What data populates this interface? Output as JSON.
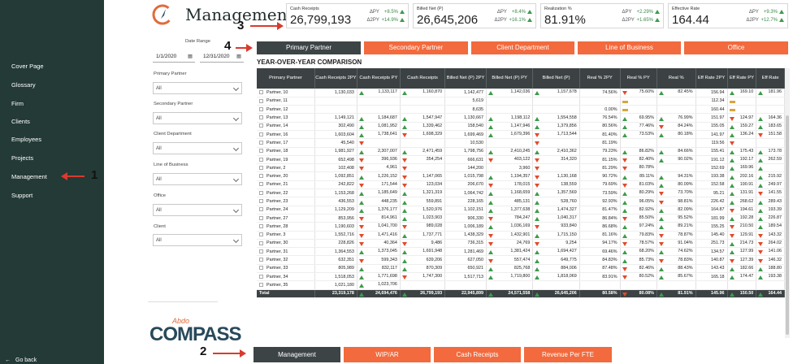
{
  "sidebar": {
    "items": [
      {
        "label": "Cover Page"
      },
      {
        "label": "Glossary"
      },
      {
        "label": "Firm"
      },
      {
        "label": "Clients"
      },
      {
        "label": "Employees"
      },
      {
        "label": "Projects"
      },
      {
        "label": "Management"
      },
      {
        "label": "Support"
      }
    ],
    "go_back": "Go back",
    "bg_color": "#233a36"
  },
  "header": {
    "title": "Management"
  },
  "kpis": [
    {
      "label": "Cash Receipts",
      "value": "26,799,193",
      "d1_label": "ΔPY",
      "d1": "+8.5%",
      "d2_label": "Δ2PY",
      "d2": "+14.9%"
    },
    {
      "label": "Billed Net (P)",
      "value": "26,645,206",
      "d1_label": "ΔPY",
      "d1": "+8.4%",
      "d2_label": "Δ2PY",
      "d2": "+16.1%"
    },
    {
      "label": "Realization %",
      "value": "81.91%",
      "d1_label": "ΔPY",
      "d1": "+2.29%",
      "d2_label": "Δ2PY",
      "d2": "+1.65%"
    },
    {
      "label": "Effective Rate",
      "value": "164.44",
      "d1_label": "ΔPY",
      "d1": "+9.3%",
      "d2_label": "Δ2PY",
      "d2": "+12.7%"
    }
  ],
  "filters": {
    "date_range_label": "Date Range",
    "date_from": "1/1/2020",
    "date_to": "12/31/2020",
    "selects": [
      {
        "label": "Primary Partner",
        "value": "All"
      },
      {
        "label": "Secondary Partner",
        "value": "All"
      },
      {
        "label": "Client Department",
        "value": "All"
      },
      {
        "label": "Line of Business",
        "value": "All"
      },
      {
        "label": "Office",
        "value": "All"
      },
      {
        "label": "Client",
        "value": "All"
      }
    ]
  },
  "tabs": [
    "Primary Partner",
    "Secondary Partner",
    "Client Department",
    "Line of Business",
    "Office"
  ],
  "bottom_tabs": [
    "Management",
    "WIP/AR",
    "Cash Receipts",
    "Revenue Per FTE"
  ],
  "annotations": [
    "1",
    "2",
    "3",
    "4"
  ],
  "table": {
    "title": "YEAR-OVER-YEAR COMPARISON",
    "columns": [
      "Primary Partner",
      "Cash Receipts 2PY",
      "Cash Receipts PY",
      "Cash Receipts",
      "Billed Net (P) 2PY",
      "Billed Net (P) PY",
      "Billed Net (P)",
      "Real % 2PY",
      "Real % PY",
      "Real %",
      "Eff Rate 2PY",
      "Eff Rate PY",
      "Eff Rate"
    ],
    "rows": [
      [
        "Partner, 10",
        "1,130,033",
        "1,133,117",
        "1,160,870",
        "1,142,477",
        "1,142,036",
        "1,157,678",
        "74.56%",
        "75.60%",
        "82.45%",
        "156.94",
        "169.10",
        "181.96"
      ],
      [
        "Partner, 11",
        "",
        "",
        "",
        "5,619",
        "",
        "",
        "",
        "",
        "",
        "112.34",
        "",
        ""
      ],
      [
        "Partner, 12",
        "",
        "",
        "",
        "8,635",
        "",
        "",
        "0.00%",
        "",
        "",
        "160.44",
        "",
        ""
      ],
      [
        "Partner, 13",
        "1,149,121",
        "1,184,687",
        "1,547,947",
        "1,130,667",
        "1,198,112",
        "1,554,558",
        "76.54%",
        "69.95%",
        "76.99%",
        "151.97",
        "124.97",
        "164.36"
      ],
      [
        "Partner, 14",
        "302,490",
        "1,081,952",
        "1,339,462",
        "158,540",
        "1,147,946",
        "1,379,856",
        "80.56%",
        "77.46%",
        "84.24%",
        "155.05",
        "159.27",
        "183.65"
      ],
      [
        "Partner, 16",
        "1,603,604",
        "1,738,641",
        "1,698,329",
        "1,699,469",
        "1,679,396",
        "1,713,544",
        "81.40%",
        "73.53%",
        "80.18%",
        "141.97",
        "136.24",
        "151.58"
      ],
      [
        "Partner, 17",
        "45,540",
        "",
        "",
        "10,530",
        "",
        "",
        "81.19%",
        "",
        "",
        "119.56",
        "",
        ""
      ],
      [
        "Partner, 18",
        "1,981,927",
        "2,307,007",
        "2,471,459",
        "1,798,756",
        "2,410,245",
        "2,410,362",
        "79.23%",
        "86.82%",
        "84.66%",
        "155.41",
        "175.43",
        "173.78"
      ],
      [
        "Partner, 19",
        "652,498",
        "396,936",
        "354,254",
        "666,631",
        "403,122",
        "314,320",
        "81.15%",
        "82.40%",
        "90.02%",
        "191.12",
        "192.17",
        "262.59"
      ],
      [
        "Partner, 2",
        "102,408",
        "4,961",
        "",
        "144,200",
        "3,960",
        "",
        "81.29%",
        "80.78%",
        "",
        "152.69",
        "169.96",
        ""
      ],
      [
        "Partner, 20",
        "1,092,851",
        "1,226,152",
        "1,147,065",
        "1,015,798",
        "1,194,357",
        "1,130,168",
        "90.72%",
        "89.11%",
        "94.31%",
        "193.38",
        "202.16",
        "215.92"
      ],
      [
        "Partner, 21",
        "242,822",
        "171,544",
        "123,034",
        "206,670",
        "178,015",
        "138,559",
        "79.69%",
        "81.03%",
        "80.09%",
        "152.58",
        "190.91",
        "249.97"
      ],
      [
        "Partner, 22",
        "1,153,268",
        "1,185,649",
        "1,321,319",
        "1,064,742",
        "1,168,659",
        "1,357,569",
        "73.59%",
        "80.29%",
        "73.70%",
        "95.21",
        "131.91",
        "141.55"
      ],
      [
        "Partner, 23",
        "436,553",
        "448,235",
        "559,891",
        "228,165",
        "485,131",
        "528,760",
        "92.93%",
        "96.05%",
        "98.81%",
        "226.42",
        "268.62",
        "289.43"
      ],
      [
        "Partner, 24",
        "1,129,209",
        "1,376,177",
        "1,520,976",
        "1,102,151",
        "1,377,638",
        "1,474,327",
        "81.47%",
        "82.92%",
        "82.09%",
        "164.87",
        "194.61",
        "193.39"
      ],
      [
        "Partner, 27",
        "853,956",
        "814,961",
        "1,023,903",
        "906,330",
        "784,247",
        "1,040,317",
        "86.84%",
        "85.50%",
        "95.52%",
        "181.99",
        "192.28",
        "226.87"
      ],
      [
        "Partner, 28",
        "1,190,603",
        "1,041,700",
        "989,028",
        "1,006,189",
        "1,036,169",
        "933,840",
        "86.68%",
        "97.24%",
        "89.21%",
        "155.25",
        "210.50",
        "189.54"
      ],
      [
        "Partner, 3",
        "1,552,716",
        "1,471,416",
        "1,737,771",
        "1,438,329",
        "1,432,901",
        "1,715,150",
        "81.16%",
        "79.83%",
        "78.87%",
        "145.40",
        "129.91",
        "143.32"
      ],
      [
        "Partner, 30",
        "228,826",
        "40,364",
        "9,486",
        "736,315",
        "24,769",
        "9,254",
        "94.17%",
        "78.57%",
        "91.04%",
        "251.73",
        "214.73",
        "264.02"
      ],
      [
        "Partner, 31",
        "1,364,553",
        "1,373,045",
        "1,691,948",
        "1,281,469",
        "1,381,424",
        "1,694,427",
        "69.46%",
        "68.20%",
        "74.62%",
        "134.57",
        "127.99",
        "141.06"
      ],
      [
        "Partner, 32",
        "632,351",
        "599,343",
        "639,206",
        "627,050",
        "557,474",
        "649,775",
        "84.83%",
        "85.73%",
        "78.83%",
        "140.87",
        "127.39",
        "146.32"
      ],
      [
        "Partner, 33",
        "805,989",
        "832,117",
        "870,309",
        "650,921",
        "825,768",
        "884,006",
        "87.48%",
        "82.46%",
        "88.43%",
        "143.43",
        "182.66",
        "188.80"
      ],
      [
        "Partner, 34",
        "1,518,053",
        "1,771,698",
        "1,747,300",
        "1,517,713",
        "1,719,800",
        "1,818,069",
        "83.91%",
        "80.52%",
        "85.67%",
        "165.18",
        "174.47",
        "193.38"
      ],
      [
        "Partner, 35",
        "1,021,180",
        "1,023,706",
        "",
        "",
        "",
        "",
        "",
        "",
        "",
        "",
        "",
        ""
      ]
    ],
    "indicators": [
      [
        "u",
        "u",
        "u",
        "u",
        "d",
        "u",
        "u",
        "u",
        "u"
      ],
      [
        "",
        "",
        "",
        "",
        "f",
        "",
        "f",
        "",
        "f"
      ],
      [
        "",
        "",
        "",
        "",
        "f",
        "",
        "f",
        "",
        "f"
      ],
      [
        "u",
        "u",
        "u",
        "u",
        "u",
        "u",
        "d",
        "u",
        "u"
      ],
      [
        "u",
        "u",
        "u",
        "u",
        "u",
        "d",
        "u",
        "u",
        "u"
      ],
      [
        "u",
        "d",
        "u",
        "d",
        "u",
        "u",
        "u",
        "d",
        "u"
      ],
      [
        "d",
        "",
        "",
        "d",
        "",
        "",
        "d",
        "",
        ""
      ],
      [
        "u",
        "u",
        "u",
        "u",
        "u",
        "u",
        "u",
        "u",
        "d"
      ],
      [
        "d",
        "d",
        "d",
        "d",
        "d",
        "u",
        "u",
        "u",
        "u"
      ],
      [
        "d",
        "d",
        "",
        "d",
        "d",
        "",
        "u",
        "u",
        ""
      ],
      [
        "u",
        "d",
        "u",
        "d",
        "u",
        "u",
        "u",
        "u",
        "u"
      ],
      [
        "d",
        "d",
        "d",
        "d",
        "d",
        "u",
        "u",
        "u",
        "u"
      ],
      [
        "u",
        "u",
        "u",
        "u",
        "u",
        "d",
        "u",
        "d",
        "u"
      ],
      [
        "u",
        "u",
        "u",
        "u",
        "u",
        "d",
        "u",
        "u",
        "u"
      ],
      [
        "u",
        "u",
        "u",
        "u",
        "u",
        "u",
        "d",
        "u",
        "d"
      ],
      [
        "d",
        "u",
        "d",
        "u",
        "d",
        "u",
        "u",
        "u",
        "u"
      ],
      [
        "d",
        "d",
        "u",
        "d",
        "u",
        "u",
        "d",
        "u",
        "d"
      ],
      [
        "d",
        "u",
        "d",
        "u",
        "u",
        "d",
        "d",
        "d",
        "u"
      ],
      [
        "d",
        "d",
        "d",
        "d",
        "d",
        "d",
        "u",
        "d",
        "u"
      ],
      [
        "u",
        "u",
        "u",
        "u",
        "u",
        "u",
        "u",
        "d",
        "u"
      ],
      [
        "d",
        "u",
        "d",
        "u",
        "u",
        "d",
        "d",
        "d",
        "u"
      ],
      [
        "u",
        "u",
        "u",
        "u",
        "d",
        "u",
        "u",
        "u",
        "u"
      ],
      [
        "u",
        "d",
        "u",
        "u",
        "d",
        "u",
        "u",
        "u",
        "u"
      ],
      [
        "u",
        "",
        "",
        "",
        "",
        "",
        "",
        "",
        ""
      ]
    ],
    "total": [
      "Total",
      "23,319,178",
      "24,694,476",
      "26,799,193",
      "22,945,899",
      "24,571,558",
      "26,645,206",
      "80.58%",
      "80.08%",
      "81.91%",
      "145.96",
      "150.50",
      "164.44"
    ],
    "total_indicators": [
      "u",
      "u",
      "u",
      "u",
      "d",
      "u",
      "u",
      "u",
      "u"
    ]
  },
  "compass_logo": {
    "abdo": "Abdo",
    "word": "COMPASS"
  },
  "colors": {
    "accent": "#f26a3d",
    "dark": "#3c4244",
    "up": "#3f9a4d",
    "down": "#e14a2a",
    "flat": "#d9a43f",
    "annotation_arrow": "#d93a2f"
  }
}
